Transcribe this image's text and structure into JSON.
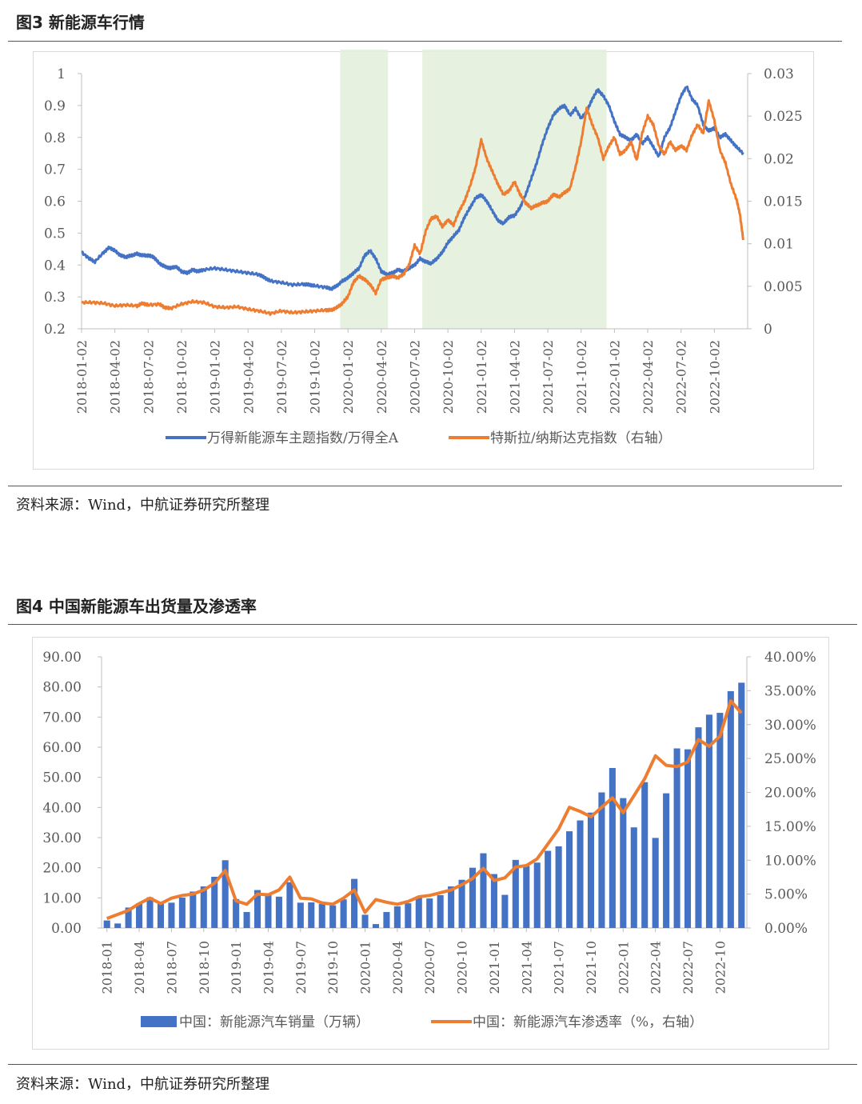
{
  "figures": [
    {
      "title": "图3  新能源车行情",
      "source": "资料来源：Wind，中航证券研究所整理"
    },
    {
      "title": "图4  中国新能源车出货量及渗透率",
      "source": "资料来源：Wind，中航证券研究所整理"
    }
  ],
  "colors": {
    "blue": "#4472C4",
    "orange": "#ED7D31",
    "shade": "#E2EFDA",
    "axis": "#595959",
    "grid": "#d9d9d9"
  },
  "chart_data": [
    {
      "type": "line",
      "title": "图3  新能源车行情",
      "yleft": {
        "min": 0.2,
        "max": 1,
        "ticks": [
          "1",
          "0.9",
          "0.8",
          "0.7",
          "0.6",
          "0.5",
          "0.4",
          "0.3",
          "0.2"
        ]
      },
      "yright": {
        "min": 0,
        "max": 0.03,
        "ticks": [
          "0.03",
          "0.025",
          "0.02",
          "0.015",
          "0.01",
          "0.005",
          "0"
        ]
      },
      "x_months_total": 60,
      "xticks": [
        "2018-01-02",
        "2018-04-02",
        "2018-07-02",
        "2018-10-02",
        "2019-01-02",
        "2019-04-02",
        "2019-07-02",
        "2019-10-02",
        "2020-01-02",
        "2020-04-02",
        "2020-07-02",
        "2020-10-02",
        "2021-01-02",
        "2021-04-02",
        "2021-07-02",
        "2021-10-02",
        "2022-01-02",
        "2022-04-02",
        "2022-07-02",
        "2022-10-02"
      ],
      "shaded_ranges_months": [
        [
          23.3,
          27.6
        ],
        [
          30.7,
          47.3
        ]
      ],
      "series": [
        {
          "name": "万得新能源车主题指数/万得全A",
          "axis": "left",
          "points": [
            [
              0,
              0.44
            ],
            [
              0.7,
              0.42
            ],
            [
              1.2,
              0.41
            ],
            [
              2,
              0.44
            ],
            [
              2.5,
              0.455
            ],
            [
              3,
              0.445
            ],
            [
              3.5,
              0.43
            ],
            [
              4,
              0.425
            ],
            [
              4.5,
              0.43
            ],
            [
              5,
              0.435
            ],
            [
              5.5,
              0.43
            ],
            [
              6,
              0.43
            ],
            [
              6.5,
              0.425
            ],
            [
              7,
              0.405
            ],
            [
              7.5,
              0.395
            ],
            [
              8,
              0.39
            ],
            [
              8.5,
              0.395
            ],
            [
              9,
              0.38
            ],
            [
              9.5,
              0.375
            ],
            [
              10,
              0.385
            ],
            [
              10.5,
              0.38
            ],
            [
              11,
              0.385
            ],
            [
              12,
              0.39
            ],
            [
              13,
              0.385
            ],
            [
              14,
              0.38
            ],
            [
              15,
              0.375
            ],
            [
              16,
              0.37
            ],
            [
              16.5,
              0.36
            ],
            [
              17,
              0.35
            ],
            [
              18,
              0.345
            ],
            [
              19,
              0.338
            ],
            [
              20,
              0.34
            ],
            [
              20.5,
              0.338
            ],
            [
              21,
              0.335
            ],
            [
              22,
              0.33
            ],
            [
              22.5,
              0.325
            ],
            [
              23,
              0.335
            ],
            [
              23.5,
              0.35
            ],
            [
              24,
              0.36
            ],
            [
              24.5,
              0.375
            ],
            [
              25,
              0.39
            ],
            [
              25.5,
              0.43
            ],
            [
              26,
              0.445
            ],
            [
              26.5,
              0.42
            ],
            [
              27,
              0.38
            ],
            [
              27.5,
              0.37
            ],
            [
              28,
              0.375
            ],
            [
              28.5,
              0.385
            ],
            [
              29,
              0.38
            ],
            [
              29.5,
              0.39
            ],
            [
              30,
              0.4
            ],
            [
              30.5,
              0.42
            ],
            [
              31,
              0.41
            ],
            [
              31.5,
              0.405
            ],
            [
              32,
              0.42
            ],
            [
              32.5,
              0.44
            ],
            [
              33,
              0.47
            ],
            [
              33.5,
              0.49
            ],
            [
              34,
              0.51
            ],
            [
              34.5,
              0.55
            ],
            [
              35,
              0.58
            ],
            [
              35.5,
              0.61
            ],
            [
              36,
              0.62
            ],
            [
              36.5,
              0.6
            ],
            [
              37,
              0.57
            ],
            [
              37.5,
              0.54
            ],
            [
              38,
              0.53
            ],
            [
              38.5,
              0.55
            ],
            [
              39,
              0.555
            ],
            [
              39.5,
              0.58
            ],
            [
              40,
              0.62
            ],
            [
              40.5,
              0.67
            ],
            [
              41,
              0.72
            ],
            [
              41.5,
              0.78
            ],
            [
              42,
              0.83
            ],
            [
              42.5,
              0.87
            ],
            [
              43,
              0.89
            ],
            [
              43.5,
              0.9
            ],
            [
              44,
              0.87
            ],
            [
              44.5,
              0.89
            ],
            [
              45,
              0.86
            ],
            [
              45.5,
              0.88
            ],
            [
              46,
              0.92
            ],
            [
              46.5,
              0.95
            ],
            [
              47,
              0.93
            ],
            [
              47.5,
              0.9
            ],
            [
              48,
              0.85
            ],
            [
              48.5,
              0.81
            ],
            [
              49,
              0.8
            ],
            [
              49.5,
              0.79
            ],
            [
              50,
              0.81
            ],
            [
              50.5,
              0.78
            ],
            [
              51,
              0.8
            ],
            [
              51.5,
              0.77
            ],
            [
              52,
              0.74
            ],
            [
              52.5,
              0.8
            ],
            [
              53,
              0.83
            ],
            [
              53.5,
              0.88
            ],
            [
              54,
              0.93
            ],
            [
              54.5,
              0.96
            ],
            [
              55,
              0.92
            ],
            [
              55.5,
              0.9
            ],
            [
              56,
              0.84
            ],
            [
              56.5,
              0.82
            ],
            [
              57,
              0.83
            ],
            [
              57.5,
              0.8
            ],
            [
              58,
              0.81
            ],
            [
              58.5,
              0.79
            ],
            [
              59,
              0.77
            ],
            [
              59.6,
              0.75
            ]
          ]
        },
        {
          "name": "特斯拉/纳斯达克指数（右轴）",
          "axis": "right",
          "points": [
            [
              0,
              0.0031
            ],
            [
              1,
              0.0031
            ],
            [
              2,
              0.003
            ],
            [
              3,
              0.0027
            ],
            [
              4,
              0.0028
            ],
            [
              5,
              0.0027
            ],
            [
              5.5,
              0.003
            ],
            [
              6,
              0.0028
            ],
            [
              7,
              0.0029
            ],
            [
              7.5,
              0.0025
            ],
            [
              8,
              0.0024
            ],
            [
              9,
              0.0029
            ],
            [
              10,
              0.0032
            ],
            [
              11,
              0.0031
            ],
            [
              12,
              0.0026
            ],
            [
              13,
              0.0025
            ],
            [
              14,
              0.0026
            ],
            [
              15,
              0.0023
            ],
            [
              16,
              0.0021
            ],
            [
              17,
              0.0018
            ],
            [
              18,
              0.0021
            ],
            [
              19,
              0.0019
            ],
            [
              20,
              0.002
            ],
            [
              21,
              0.0021
            ],
            [
              22,
              0.0022
            ],
            [
              22.5,
              0.0022
            ],
            [
              23,
              0.0025
            ],
            [
              23.5,
              0.003
            ],
            [
              24,
              0.0038
            ],
            [
              24.5,
              0.0055
            ],
            [
              25,
              0.0062
            ],
            [
              25.5,
              0.0058
            ],
            [
              26,
              0.0052
            ],
            [
              26.5,
              0.0042
            ],
            [
              27,
              0.0058
            ],
            [
              27.5,
              0.006
            ],
            [
              28,
              0.0062
            ],
            [
              28.5,
              0.006
            ],
            [
              29,
              0.0064
            ],
            [
              29.5,
              0.0075
            ],
            [
              30,
              0.0098
            ],
            [
              30.5,
              0.0088
            ],
            [
              31,
              0.0115
            ],
            [
              31.5,
              0.013
            ],
            [
              32,
              0.0132
            ],
            [
              32.5,
              0.012
            ],
            [
              33,
              0.0128
            ],
            [
              33.5,
              0.0122
            ],
            [
              34,
              0.0138
            ],
            [
              34.5,
              0.015
            ],
            [
              35,
              0.0168
            ],
            [
              35.5,
              0.019
            ],
            [
              36,
              0.0222
            ],
            [
              36.5,
              0.02
            ],
            [
              37,
              0.0185
            ],
            [
              37.5,
              0.017
            ],
            [
              38,
              0.0158
            ],
            [
              38.5,
              0.0162
            ],
            [
              39,
              0.0173
            ],
            [
              39.5,
              0.0158
            ],
            [
              40,
              0.0148
            ],
            [
              40.5,
              0.0142
            ],
            [
              41,
              0.0145
            ],
            [
              41.5,
              0.0148
            ],
            [
              42,
              0.015
            ],
            [
              42.5,
              0.0158
            ],
            [
              43,
              0.0155
            ],
            [
              43.5,
              0.016
            ],
            [
              44,
              0.0165
            ],
            [
              44.5,
              0.019
            ],
            [
              45,
              0.022
            ],
            [
              45.5,
              0.026
            ],
            [
              46,
              0.024
            ],
            [
              46.5,
              0.0225
            ],
            [
              47,
              0.02
            ],
            [
              47.5,
              0.0215
            ],
            [
              48,
              0.0225
            ],
            [
              48.5,
              0.0205
            ],
            [
              49,
              0.021
            ],
            [
              49.5,
              0.022
            ],
            [
              50,
              0.0198
            ],
            [
              50.5,
              0.023
            ],
            [
              51,
              0.025
            ],
            [
              51.5,
              0.024
            ],
            [
              52,
              0.0215
            ],
            [
              52.5,
              0.0205
            ],
            [
              53,
              0.022
            ],
            [
              53.5,
              0.021
            ],
            [
              54,
              0.0215
            ],
            [
              54.5,
              0.021
            ],
            [
              55,
              0.0228
            ],
            [
              55.5,
              0.024
            ],
            [
              56,
              0.023
            ],
            [
              56.5,
              0.0268
            ],
            [
              57,
              0.0245
            ],
            [
              57.5,
              0.021
            ],
            [
              58,
              0.0195
            ],
            [
              58.5,
              0.017
            ],
            [
              59,
              0.0152
            ],
            [
              59.3,
              0.0135
            ],
            [
              59.6,
              0.0105
            ]
          ]
        }
      ]
    },
    {
      "type": "bar+line",
      "title": "图4  中国新能源车出货量及渗透率",
      "yleft": {
        "min": 0,
        "max": 90,
        "ticks": [
          "90.00",
          "80.00",
          "70.00",
          "60.00",
          "50.00",
          "40.00",
          "30.00",
          "20.00",
          "10.00",
          "0.00"
        ]
      },
      "yright": {
        "min": 0,
        "max": 40,
        "ticks": [
          "40.00%",
          "35.00%",
          "30.00%",
          "25.00%",
          "20.00%",
          "15.00%",
          "10.00%",
          "5.00%",
          "0.00%"
        ]
      },
      "categories_count": 60,
      "xticks": [
        "2018-01",
        "2018-04",
        "2018-07",
        "2018-10",
        "2019-01",
        "2019-04",
        "2019-07",
        "2019-10",
        "2020-01",
        "2020-04",
        "2020-07",
        "2020-10",
        "2021-01",
        "2021-04",
        "2021-07",
        "2021-10",
        "2022-01",
        "2022-04",
        "2022-07",
        "2022-10"
      ],
      "series": [
        {
          "name": "中国：新能源汽车销量（万辆）",
          "kind": "bar",
          "axis": "left",
          "values": [
            2.5,
            1.5,
            6.8,
            8.2,
            10.2,
            8.4,
            8.4,
            10.1,
            12.1,
            13.8,
            17.0,
            22.5,
            9.6,
            5.3,
            12.6,
            11.1,
            10.4,
            15.2,
            8.4,
            8.5,
            8.0,
            7.5,
            9.5,
            16.3,
            4.4,
            1.3,
            5.3,
            7.2,
            8.2,
            10.4,
            9.8,
            10.9,
            13.8,
            16.0,
            20.0,
            24.8,
            17.9,
            11.0,
            22.6,
            20.6,
            21.7,
            25.6,
            27.1,
            32.1,
            35.7,
            38.3,
            45.0,
            53.1,
            43.1,
            33.4,
            48.4,
            29.9,
            44.7,
            59.6,
            59.3,
            66.6,
            70.8,
            71.4,
            78.6,
            81.4
          ]
        },
        {
          "name": "中国：新能源汽车渗透率（%，右轴）",
          "kind": "line",
          "axis": "right",
          "values": [
            1.4,
            2.0,
            2.6,
            3.6,
            4.4,
            3.6,
            4.4,
            4.8,
            5.0,
            5.6,
            6.6,
            8.5,
            4.0,
            3.5,
            5.0,
            4.9,
            5.6,
            7.5,
            4.4,
            4.3,
            3.7,
            3.5,
            4.4,
            5.6,
            2.3,
            4.2,
            3.8,
            3.5,
            3.9,
            4.6,
            4.8,
            5.2,
            5.6,
            6.4,
            7.3,
            8.8,
            7.0,
            7.4,
            9.0,
            9.2,
            10.2,
            12.4,
            14.6,
            17.8,
            17.2,
            16.4,
            17.8,
            19.2,
            17.0,
            19.5,
            22.0,
            25.4,
            24.0,
            23.8,
            24.5,
            27.8,
            26.8,
            28.3,
            33.5,
            31.7
          ]
        }
      ]
    }
  ]
}
